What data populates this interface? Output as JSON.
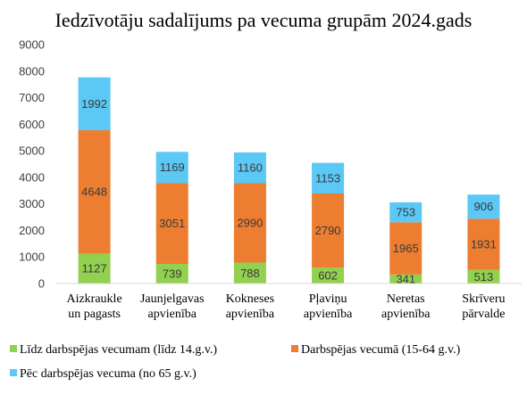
{
  "chart_data": {
    "type": "bar",
    "stacked": true,
    "title": "Iedzīvotāju sadalījums pa vecuma grupām 2024.gads",
    "xlabel": "",
    "ylabel": "",
    "ylim": [
      0,
      9000
    ],
    "yticks": [
      0,
      1000,
      2000,
      3000,
      4000,
      5000,
      6000,
      7000,
      8000,
      9000
    ],
    "grid": false,
    "legend_position": "bottom",
    "categories": [
      [
        "Aizkraukle",
        "un pagasts"
      ],
      [
        "Jaunjelgavas",
        "apvienība"
      ],
      [
        "Kokneses",
        "apvienība"
      ],
      [
        "Pļaviņu",
        "apvienība"
      ],
      [
        "Neretas",
        "apvienība"
      ],
      [
        "Skrīveru",
        "pārvalde"
      ]
    ],
    "series": [
      {
        "name": "Līdz darbspējas vecumam (līdz 14.g.v.)",
        "color": "#92d050",
        "values": [
          1127,
          739,
          788,
          602,
          341,
          513
        ]
      },
      {
        "name": "Darbspējas vecumā (15-64 g.v.)",
        "color": "#ed7d31",
        "values": [
          4648,
          3051,
          2990,
          2790,
          1965,
          1931
        ]
      },
      {
        "name": "Pēc darbspējas vecuma (no 65 g.v.)",
        "color": "#5bc8f5",
        "values": [
          1992,
          1169,
          1160,
          1153,
          753,
          906
        ]
      }
    ]
  }
}
